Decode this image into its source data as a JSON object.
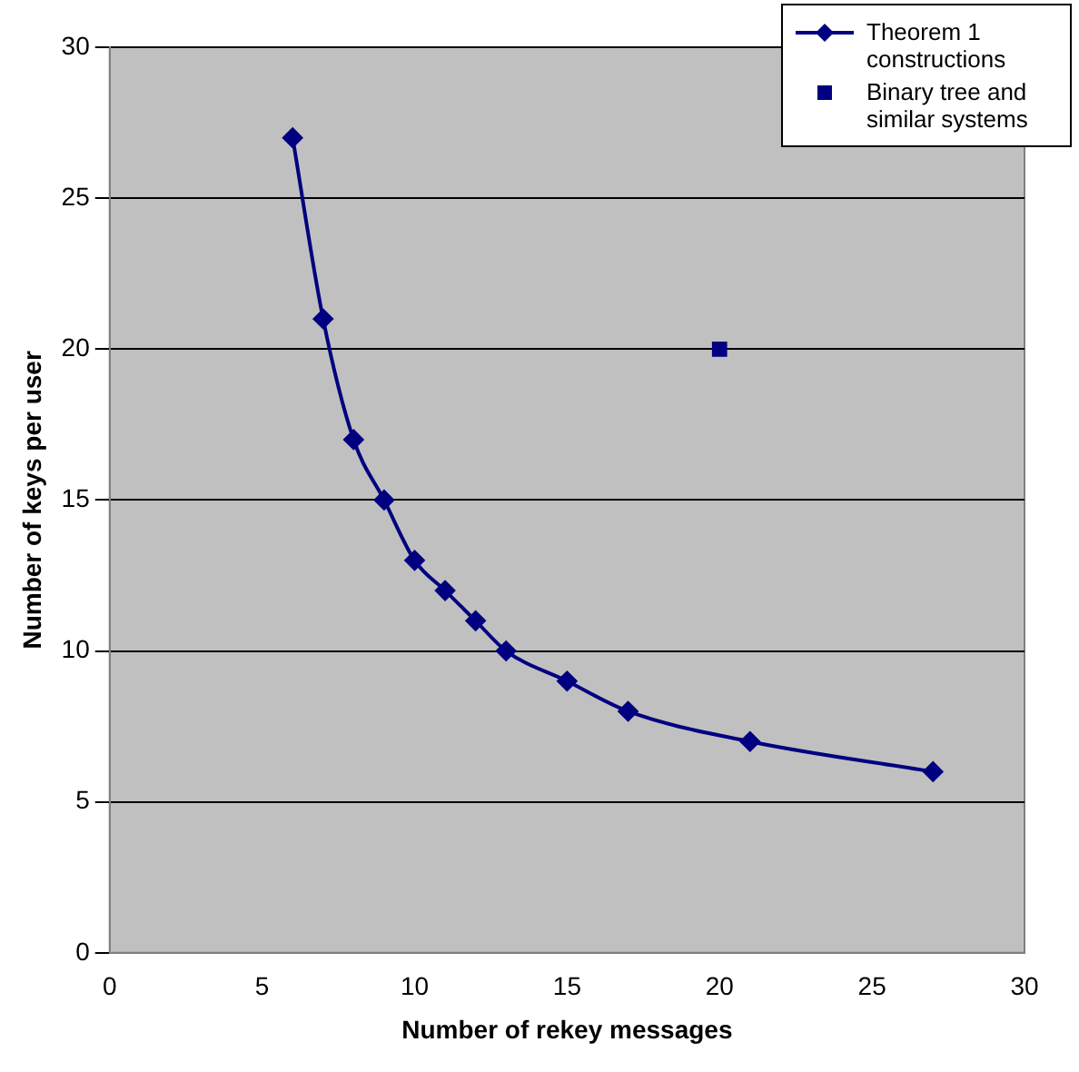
{
  "chart_data": {
    "type": "line",
    "xlabel": "Number of rekey messages",
    "ylabel": "Number of keys per user",
    "xlim": [
      0,
      30
    ],
    "xticks": [
      0,
      5,
      10,
      15,
      20,
      25,
      30
    ],
    "ylim": [
      0,
      30
    ],
    "yticks": [
      0,
      5,
      10,
      15,
      20,
      25,
      30
    ],
    "grid": "y",
    "legend": "top right",
    "line_style": "solid",
    "series": [
      {
        "name": "Theorem 1 constructions",
        "marker": "diamond",
        "color": "#000080",
        "x": [
          6,
          7,
          8,
          9,
          10,
          11,
          12,
          13,
          15,
          17,
          21,
          27
        ],
        "values": [
          27,
          21,
          17,
          15,
          13,
          12,
          11,
          10,
          9,
          8,
          7,
          6
        ]
      },
      {
        "name": "Binary tree and similar systems",
        "type": "scatter",
        "marker": "square",
        "color": "#000080",
        "x": [
          20
        ],
        "values": [
          20
        ]
      }
    ]
  }
}
